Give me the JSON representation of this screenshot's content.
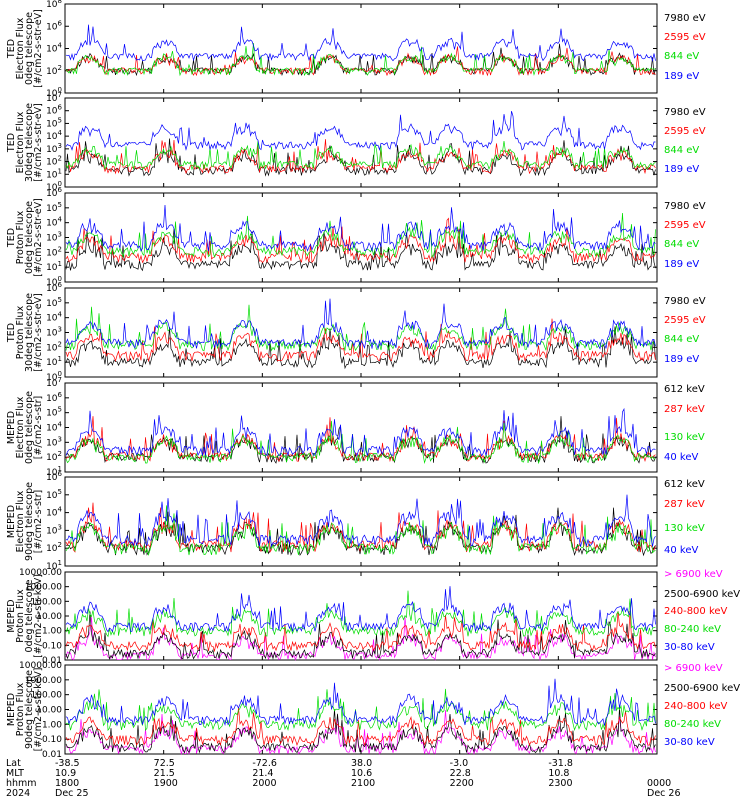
{
  "chart_data": [
    {
      "type": "line",
      "ylabel": [
        "TED",
        "Electron Flux",
        "0deg telescope",
        "[#/cm2-s-str-eV]"
      ],
      "scale": "log",
      "ylim": [
        1,
        100000000
      ],
      "ytick_labels": [
        "10^0",
        "10^2",
        "10^4",
        "10^6",
        "10^8"
      ],
      "series": [
        {
          "name": "7980 eV",
          "color": "#000000",
          "level": 100
        },
        {
          "name": "2595 eV",
          "color": "#ff0000",
          "level": 100
        },
        {
          "name": "844 eV",
          "color": "#00dd00",
          "level": 100
        },
        {
          "name": "189 eV",
          "color": "#0000ff",
          "level": 2000
        }
      ]
    },
    {
      "type": "line",
      "ylabel": [
        "TED",
        "Electron Flux",
        "30deg telescope",
        "[#/cm2-s-str-eV]"
      ],
      "scale": "log",
      "ylim": [
        1,
        10000000
      ],
      "ytick_labels": [
        "10^0",
        "10^1",
        "10^2",
        "10^3",
        "10^4",
        "10^5",
        "10^6",
        "10^7"
      ],
      "series": [
        {
          "name": "7980 eV",
          "color": "#000000",
          "level": 20
        },
        {
          "name": "2595 eV",
          "color": "#ff0000",
          "level": 30
        },
        {
          "name": "844 eV",
          "color": "#00dd00",
          "level": 60
        },
        {
          "name": "189 eV",
          "color": "#0000ff",
          "level": 2000
        }
      ]
    },
    {
      "type": "line",
      "ylabel": [
        "TED",
        "Proton Flux",
        "0deg telescope",
        "[#/cm2-s-str-eV]"
      ],
      "scale": "log",
      "ylim": [
        1,
        1000000
      ],
      "ytick_labels": [
        "10^0",
        "10^1",
        "10^2",
        "10^3",
        "10^4",
        "10^5",
        "10^6"
      ],
      "series": [
        {
          "name": "7980 eV",
          "color": "#000000",
          "level": 15
        },
        {
          "name": "2595 eV",
          "color": "#ff0000",
          "level": 50
        },
        {
          "name": "844 eV",
          "color": "#00dd00",
          "level": 120
        },
        {
          "name": "189 eV",
          "color": "#0000ff",
          "level": 300
        }
      ]
    },
    {
      "type": "line",
      "ylabel": [
        "TED",
        "Proton Flux",
        "30deg telescope",
        "[#/cm2-s-str-eV]"
      ],
      "scale": "log",
      "ylim": [
        1,
        1000000
      ],
      "ytick_labels": [
        "10^0",
        "10^1",
        "10^2",
        "10^3",
        "10^4",
        "10^5",
        "10^6"
      ],
      "series": [
        {
          "name": "7980 eV",
          "color": "#000000",
          "level": 10
        },
        {
          "name": "2595 eV",
          "color": "#ff0000",
          "level": 30
        },
        {
          "name": "844 eV",
          "color": "#00dd00",
          "level": 150
        },
        {
          "name": "189 eV",
          "color": "#0000ff",
          "level": 200
        }
      ]
    },
    {
      "type": "line",
      "ylabel": [
        "MEPED",
        "Electron Flux",
        "0deg telescope",
        "[#/cm2-s-str]"
      ],
      "scale": "log",
      "ylim": [
        10,
        10000000
      ],
      "ytick_labels": [
        "10^1",
        "10^2",
        "10^3",
        "10^4",
        "10^5",
        "10^6",
        "10^7"
      ],
      "series": [
        {
          "name": "612 keV",
          "color": "#000000",
          "level": 100
        },
        {
          "name": "287 keV",
          "color": "#ff0000",
          "level": 120
        },
        {
          "name": "130 keV",
          "color": "#00dd00",
          "level": 100
        },
        {
          "name": "40 keV",
          "color": "#0000ff",
          "level": 300
        }
      ]
    },
    {
      "type": "line",
      "ylabel": [
        "MEPED",
        "Electron Flux",
        "90deg telescope",
        "[#/cm2-s-str]"
      ],
      "scale": "log",
      "ylim": [
        10,
        1000000
      ],
      "ytick_labels": [
        "10^1",
        "10^2",
        "10^3",
        "10^4",
        "10^5",
        "10^6"
      ],
      "series": [
        {
          "name": "612 keV",
          "color": "#000000",
          "level": 100
        },
        {
          "name": "287 keV",
          "color": "#ff0000",
          "level": 150
        },
        {
          "name": "130 keV",
          "color": "#00dd00",
          "level": 100
        },
        {
          "name": "40 keV",
          "color": "#0000ff",
          "level": 300
        }
      ]
    },
    {
      "type": "line",
      "ylabel": [
        "MEPED",
        "Proton Flux",
        "0deg telescope",
        "[#/cm2-s-str-keV]"
      ],
      "scale": "log",
      "ylim": [
        0.01,
        10000
      ],
      "ytick_labels": [
        "0.01",
        "0.10",
        "1.00",
        "10.00",
        "100.00",
        "1000.00",
        "10000.00"
      ],
      "series": [
        {
          "name": "> 6900 keV",
          "color": "#ff00ff",
          "level": 0.02
        },
        {
          "name": "2500-6900 keV",
          "color": "#000000",
          "level": 0.03
        },
        {
          "name": "240-800 keV",
          "color": "#ff0000",
          "level": 0.1
        },
        {
          "name": "80-240 keV",
          "color": "#00dd00",
          "level": 1
        },
        {
          "name": "30-80 keV",
          "color": "#0000ff",
          "level": 2
        }
      ]
    },
    {
      "type": "line",
      "ylabel": [
        "MEPED",
        "Proton Flux",
        "90deg telescope",
        "[#/cm2-s-str-keV]"
      ],
      "scale": "log",
      "ylim": [
        0.01,
        10000
      ],
      "ytick_labels": [
        "0.01",
        "0.10",
        "1.00",
        "10.00",
        "100.00",
        "1000.00",
        "10000.00"
      ],
      "series": [
        {
          "name": "> 6900 keV",
          "color": "#ff00ff",
          "level": 0.02
        },
        {
          "name": "2500-6900 keV",
          "color": "#000000",
          "level": 0.03
        },
        {
          "name": "240-800 keV",
          "color": "#ff0000",
          "level": 0.1
        },
        {
          "name": "80-240 keV",
          "color": "#00dd00",
          "level": 1
        },
        {
          "name": "30-80 keV",
          "color": "#0000ff",
          "level": 2
        }
      ]
    }
  ],
  "x_axis": {
    "row_labels": [
      "Lat",
      "MLT",
      "hhmm",
      "2024"
    ],
    "columns": [
      {
        "lat": "-38.5",
        "mlt": "10.9",
        "hhmm": "1800",
        "date": "Dec 25"
      },
      {
        "lat": "72.5",
        "mlt": "21.5",
        "hhmm": "1900",
        "date": ""
      },
      {
        "lat": "-72.6",
        "mlt": "21.4",
        "hhmm": "2000",
        "date": ""
      },
      {
        "lat": "38.0",
        "mlt": "10.6",
        "hhmm": "2100",
        "date": ""
      },
      {
        "lat": "-3.0",
        "mlt": "22.8",
        "hhmm": "2200",
        "date": ""
      },
      {
        "lat": "-31.8",
        "mlt": "10.8",
        "hhmm": "2300",
        "date": ""
      },
      {
        "lat": "",
        "mlt": "",
        "hhmm": "0000",
        "date": "Dec 26"
      }
    ]
  }
}
